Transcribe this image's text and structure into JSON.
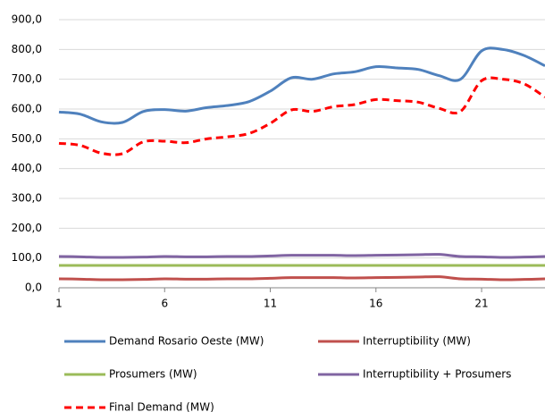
{
  "chart_data": {
    "type": "line",
    "x": [
      1,
      2,
      3,
      4,
      5,
      6,
      7,
      8,
      9,
      10,
      11,
      12,
      13,
      14,
      15,
      16,
      17,
      18,
      19,
      20,
      21,
      22,
      23,
      24
    ],
    "xlim": [
      1,
      24
    ],
    "xticks": [
      1,
      6,
      11,
      16,
      21
    ],
    "ylim": [
      0,
      900
    ],
    "yticks": [
      {
        "value": 0,
        "label": "0,0"
      },
      {
        "value": 100,
        "label": "100,0"
      },
      {
        "value": 200,
        "label": "200,0"
      },
      {
        "value": 300,
        "label": "300,0"
      },
      {
        "value": 400,
        "label": "400,0"
      },
      {
        "value": 500,
        "label": "500,0"
      },
      {
        "value": 600,
        "label": "600,0"
      },
      {
        "value": 700,
        "label": "700,0"
      },
      {
        "value": 800,
        "label": "800,0"
      },
      {
        "value": 900,
        "label": "900,0"
      }
    ],
    "grid": true,
    "series": [
      {
        "name": "Demand Rosario Oeste (MW)",
        "color": "#4f81bd",
        "values": [
          590,
          583,
          557,
          555,
          592,
          598,
          593,
          605,
          612,
          625,
          660,
          705,
          700,
          718,
          725,
          742,
          738,
          733,
          712,
          700,
          795,
          800,
          780,
          745
        ]
      },
      {
        "name": "Interruptibility (MW)",
        "color": "#c0504d",
        "values": [
          30,
          29,
          27,
          27,
          28,
          30,
          29,
          29,
          30,
          30,
          32,
          34,
          34,
          34,
          33,
          34,
          35,
          36,
          37,
          30,
          29,
          27,
          28,
          30
        ]
      },
      {
        "name": "Prosumers (MW)",
        "color": "#9bbb59",
        "values": [
          75,
          75,
          75,
          75,
          75,
          75,
          75,
          75,
          75,
          75,
          75,
          75,
          75,
          75,
          75,
          75,
          75,
          75,
          75,
          75,
          75,
          75,
          75,
          75
        ]
      },
      {
        "name": "Interruptibility + Prosumers",
        "color": "#8064a2",
        "values": [
          105,
          104,
          102,
          102,
          103,
          105,
          104,
          104,
          105,
          105,
          107,
          109,
          109,
          109,
          108,
          109,
          110,
          111,
          112,
          105,
          104,
          102,
          103,
          105
        ]
      },
      {
        "name": "Final Demand (MW)",
        "color": "#ff0000",
        "dashed": true,
        "values": [
          485,
          478,
          452,
          450,
          490,
          492,
          487,
          500,
          507,
          518,
          552,
          597,
          592,
          608,
          615,
          632,
          628,
          623,
          602,
          592,
          695,
          700,
          685,
          640
        ]
      }
    ]
  }
}
